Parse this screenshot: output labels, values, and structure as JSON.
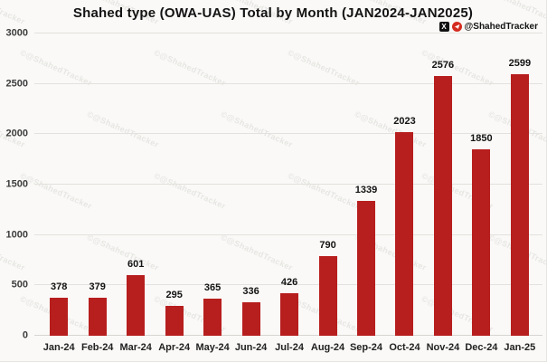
{
  "title": "Shahed type (OWA-UAS) Total by Month (JAN2024-JAN2025)",
  "credit": {
    "handle": "@ShahedTracker",
    "icons": [
      "x-logo-icon",
      "telegram-icon"
    ],
    "x_glyph": "X"
  },
  "watermark": {
    "text": "©@ShahedTracker"
  },
  "colors": {
    "bar": "#b71e1e",
    "background": "#faf9f7",
    "grid": "#e3e1dd",
    "text": "#131313",
    "credit_x_bg": "#111111",
    "credit_tg_bg": "#d42b1e"
  },
  "chart_data": {
    "type": "bar",
    "title": "Shahed type (OWA-UAS) Total by Month (JAN2024-JAN2025)",
    "categories": [
      "Jan-24",
      "Feb-24",
      "Mar-24",
      "Apr-24",
      "May-24",
      "Jun-24",
      "Jul-24",
      "Aug-24",
      "Sep-24",
      "Oct-24",
      "Nov-24",
      "Dec-24",
      "Jan-25"
    ],
    "values": [
      378,
      379,
      601,
      295,
      365,
      336,
      426,
      790,
      1339,
      2023,
      2576,
      1850,
      2599
    ],
    "xlabel": "",
    "ylabel": "",
    "ylim": [
      0,
      3000
    ],
    "yticks": [
      0,
      500,
      1000,
      1500,
      2000,
      2500,
      3000
    ],
    "grid": true,
    "data_labels": true,
    "legend": false,
    "bar_color": "#b71e1e"
  }
}
